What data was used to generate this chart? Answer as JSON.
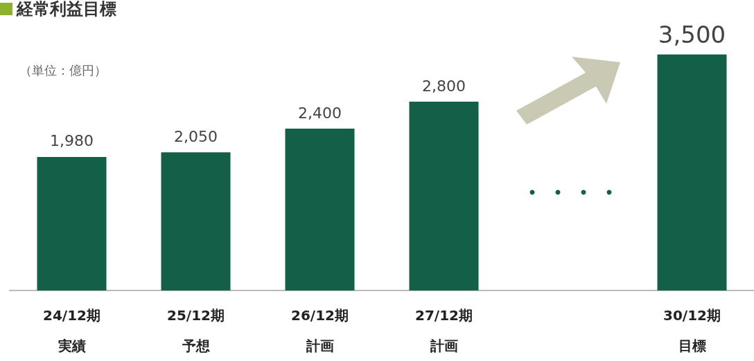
{
  "chart_data": {
    "type": "bar",
    "title": "経常利益目標",
    "categories": [
      "24/12期実績",
      "25/12期予想",
      "26/12期計画",
      "27/12期計画",
      null,
      "30/12期目標"
    ],
    "values": [
      1980,
      2050,
      2400,
      2800,
      null,
      3500
    ],
    "value_labels": [
      "1,980",
      "2,050",
      "2,400",
      "2,800",
      null,
      "3,500"
    ],
    "color": "#135f47",
    "tick_labels": "x",
    "annotations": [
      "（単位：億円）"
    ]
  }
}
